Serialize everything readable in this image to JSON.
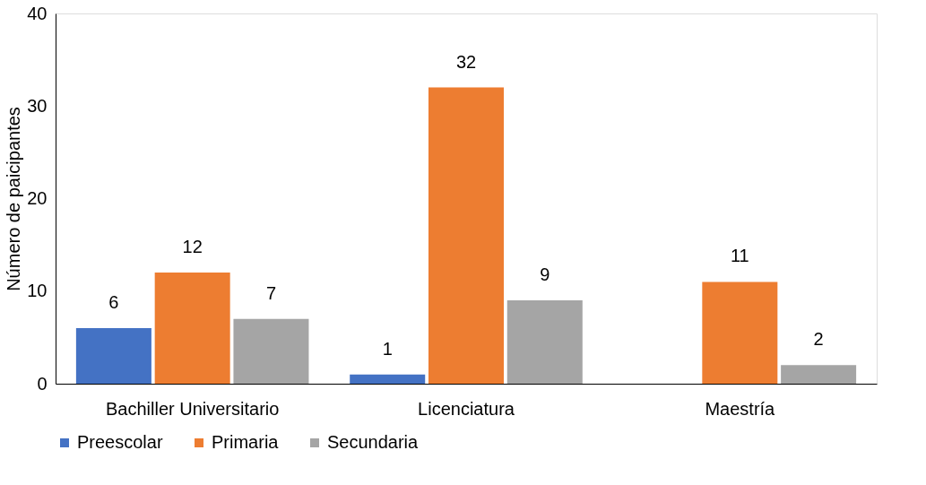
{
  "chart_data": {
    "type": "bar",
    "ylabel": "Número de paicipantes",
    "categories": [
      "Bachiller Universitario",
      "Licenciatura",
      "Maestría"
    ],
    "series": [
      {
        "name": "Preescolar",
        "color": "#4472c4",
        "values": [
          6,
          1,
          null
        ]
      },
      {
        "name": "Primaria",
        "color": "#ed7d31",
        "values": [
          12,
          32,
          11
        ]
      },
      {
        "name": "Secundaria",
        "color": "#a5a5a5",
        "values": [
          7,
          9,
          2
        ]
      }
    ],
    "ylim": [
      0,
      40
    ],
    "yticks": [
      0,
      10,
      20,
      30,
      40
    ],
    "grid": false,
    "legend": "bottom",
    "data_labels": true
  }
}
